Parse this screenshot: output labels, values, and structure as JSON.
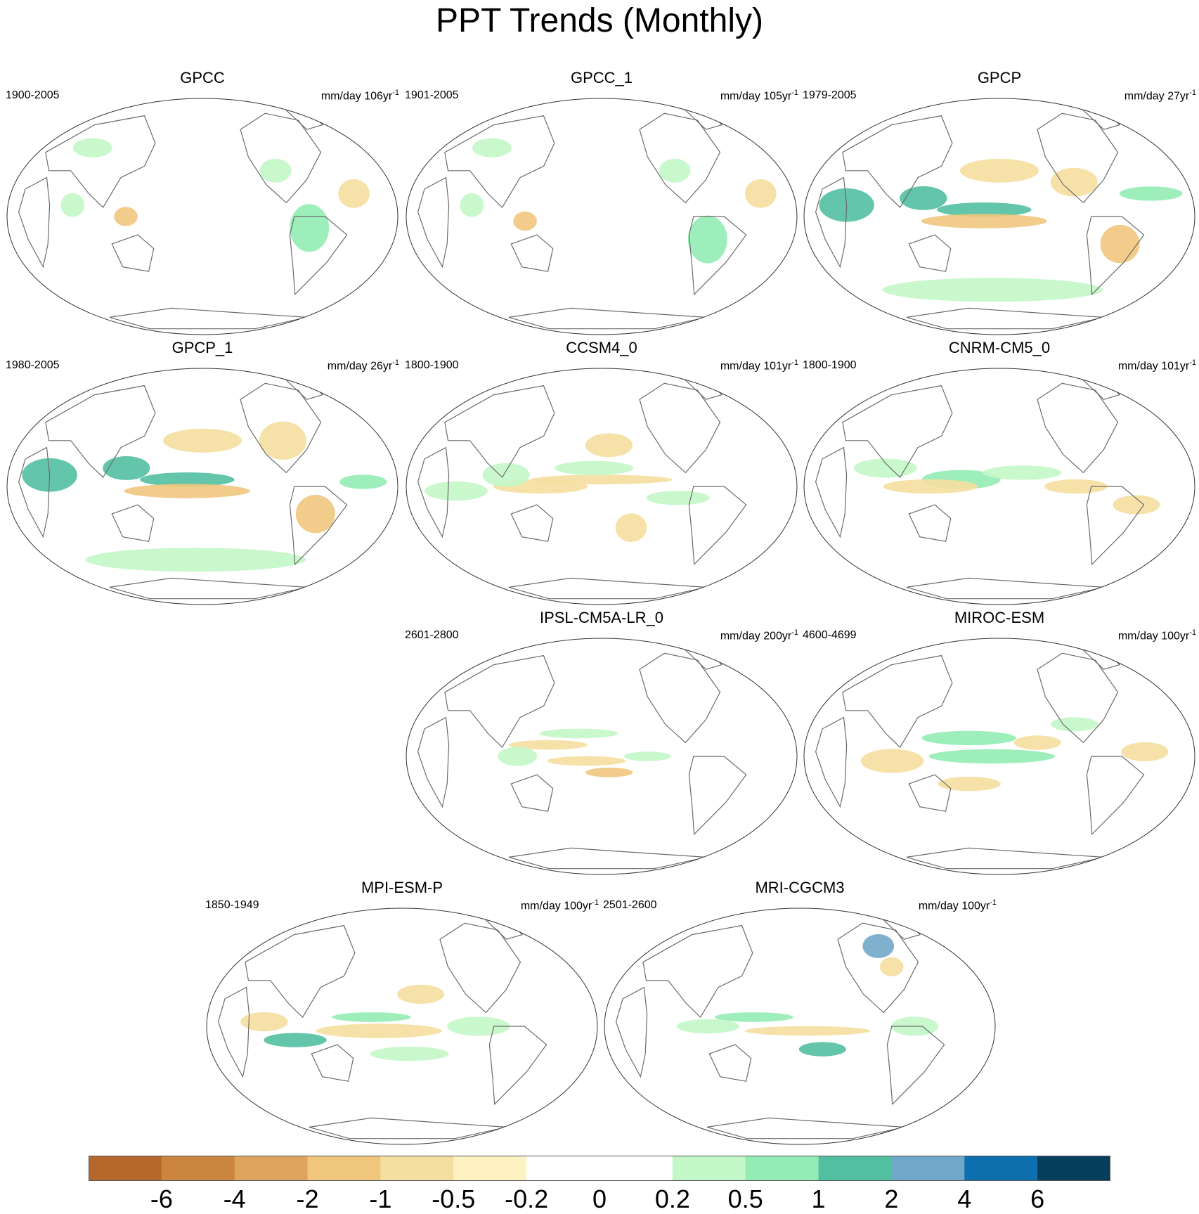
{
  "title": "PPT Trends (Monthly)",
  "chart_data": {
    "type": "heatmap",
    "title": "PPT Trends (Monthly)",
    "projection": "Robinson-like global map centered on Pacific",
    "panels": [
      {
        "name": "GPCC",
        "years": "1900-2005",
        "units": "mm/day 106yr",
        "units_sup": "-1"
      },
      {
        "name": "GPCC_1",
        "years": "1901-2005",
        "units": "mm/day 105yr",
        "units_sup": "-1"
      },
      {
        "name": "GPCP",
        "years": "1979-2005",
        "units": "mm/day 27yr",
        "units_sup": "-1"
      },
      {
        "name": "GPCP_1",
        "years": "1980-2005",
        "units": "mm/day 26yr",
        "units_sup": "-1"
      },
      {
        "name": "CCSM4_0",
        "years": "1800-1900",
        "units": "mm/day 101yr",
        "units_sup": "-1"
      },
      {
        "name": "CNRM-CM5_0",
        "years": "1800-1900",
        "units": "mm/day 101yr",
        "units_sup": "-1"
      },
      {
        "name": "IPSL-CM5A-LR_0",
        "years": "2601-2800",
        "units": "mm/day 200yr",
        "units_sup": "-1"
      },
      {
        "name": "MIROC-ESM",
        "years": "4600-4699",
        "units": "mm/day 100yr",
        "units_sup": "-1"
      },
      {
        "name": "MPI-ESM-P",
        "years": "1850-1949",
        "units": "mm/day 100yr",
        "units_sup": "-1"
      },
      {
        "name": "MRI-CGCM3",
        "years": "2501-2600",
        "units": "mm/day 100yr",
        "units_sup": "-1"
      }
    ],
    "colorbar": {
      "colors": [
        "#b5672c",
        "#cc853f",
        "#de a45e",
        "#f0c67d",
        "#f5dfa0",
        "#fff2c2",
        "#ffffff",
        "#ffffff",
        "#c4f7c8",
        "#93ecb4",
        "#52bfa0",
        "#71a8c9",
        "#0e6fae",
        "#053d5c"
      ],
      "tick_labels": [
        "-6",
        "-4",
        "-2",
        "-1",
        "-0.5",
        "-0.2",
        "0",
        "0.2",
        "0.5",
        "1",
        "2",
        "4",
        "6"
      ]
    }
  }
}
